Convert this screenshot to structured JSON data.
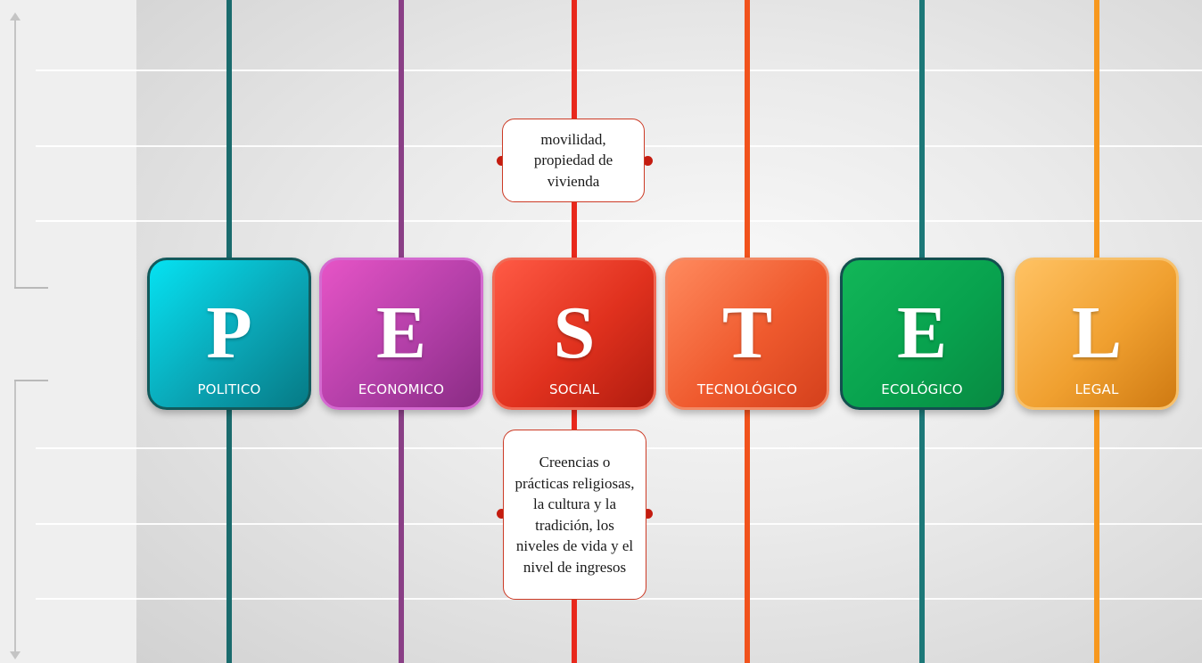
{
  "factors": [
    {
      "letter": "P",
      "label": "POLITICO",
      "color": "#0fb3c4",
      "line_color": "#1a6b6d"
    },
    {
      "letter": "E",
      "label": "ECONOMICO",
      "color": "#b43ea8",
      "line_color": "#8a3f86"
    },
    {
      "letter": "S",
      "label": "SOCIAL",
      "color": "#e0311e",
      "line_color": "#e8281c"
    },
    {
      "letter": "T",
      "label": "TECNOLÓGICO",
      "color": "#ef5a2e",
      "line_color": "#f1521c"
    },
    {
      "letter": "E",
      "label": "ECOLÓGICO",
      "color": "#08a24e",
      "line_color": "#1c7878"
    },
    {
      "letter": "L",
      "label": "LEGAL",
      "color": "#f0a030",
      "line_color": "#f7981e"
    }
  ],
  "notes": {
    "social_top": "movilidad, propiedad de vivienda",
    "social_bottom": "Creencias o prácticas religiosas, la cultura y la tradición, los niveles de vida y el nivel de ingresos"
  }
}
